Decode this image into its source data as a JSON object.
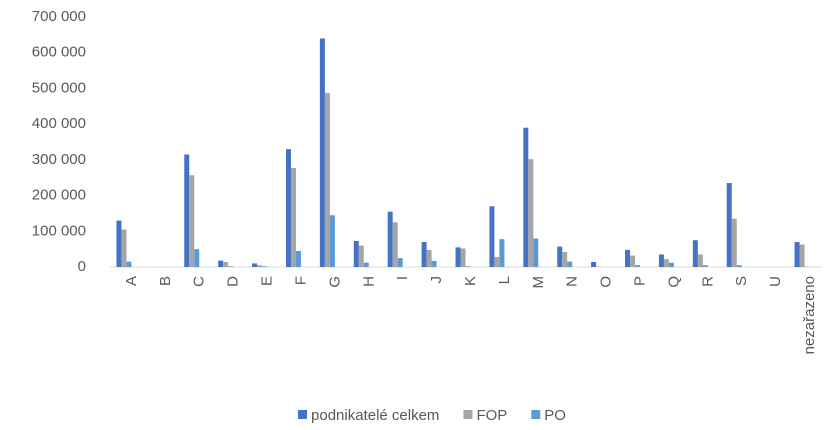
{
  "chart_data": {
    "type": "bar",
    "categories": [
      "A",
      "B",
      "C",
      "D",
      "E",
      "F",
      "G",
      "H",
      "I",
      "J",
      "K",
      "L",
      "M",
      "N",
      "O",
      "P",
      "Q",
      "R",
      "S",
      "U",
      "nezařazeno"
    ],
    "series": [
      {
        "name": "podnikatelé celkem",
        "color": "#4472c4",
        "values": [
          130000,
          0,
          315000,
          18000,
          10000,
          330000,
          640000,
          73000,
          155000,
          70000,
          55000,
          170000,
          390000,
          57000,
          14000,
          48000,
          35000,
          75000,
          235000,
          0,
          70000
        ]
      },
      {
        "name": "FOP",
        "color": "#a5a5a5",
        "values": [
          105000,
          0,
          257000,
          14000,
          5000,
          277000,
          487000,
          60000,
          125000,
          48000,
          52000,
          28000,
          302000,
          42000,
          1000,
          32000,
          22000,
          35000,
          135000,
          0,
          63000
        ]
      },
      {
        "name": "PO",
        "color": "#5b9bd5",
        "values": [
          15000,
          0,
          50000,
          2000,
          2000,
          45000,
          145000,
          12000,
          25000,
          17000,
          2000,
          78000,
          80000,
          15000,
          0,
          5000,
          12000,
          5000,
          5000,
          0,
          1000
        ]
      }
    ],
    "ylim": [
      0,
      700000
    ],
    "yticks": [
      0,
      {
        "value": 100000,
        "label": "100 000"
      },
      {
        "value": 200000,
        "label": "200 000"
      },
      {
        "value": 300000,
        "label": "300 000"
      },
      {
        "value": 400000,
        "label": "400 000"
      },
      {
        "value": 500000,
        "label": "500 000"
      },
      {
        "value": 600000,
        "label": "600 000"
      },
      {
        "value": 700000,
        "label": "700 000"
      }
    ],
    "grid": false,
    "legend": "bottom"
  }
}
